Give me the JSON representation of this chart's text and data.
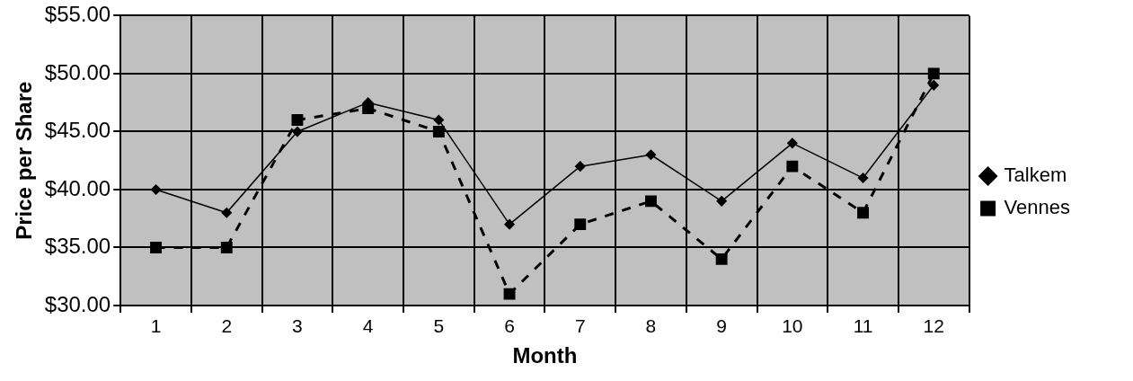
{
  "chart_data": {
    "type": "line",
    "xlabel": "Month",
    "ylabel": "Price per Share",
    "categories": [
      "1",
      "2",
      "3",
      "4",
      "5",
      "6",
      "7",
      "8",
      "9",
      "10",
      "11",
      "12"
    ],
    "series": [
      {
        "name": "Talkem",
        "color": "#000000",
        "marker": "diamond",
        "line_style": "solid",
        "values": [
          40,
          38,
          45,
          47.5,
          46,
          37,
          42,
          43,
          39,
          44,
          41,
          49
        ]
      },
      {
        "name": "Vennes",
        "color": "#000000",
        "marker": "square",
        "line_style": "dashed",
        "values": [
          35,
          35,
          46,
          47,
          45,
          31,
          37,
          39,
          34,
          42,
          38,
          50
        ]
      }
    ],
    "ylim": [
      30,
      55
    ],
    "yticks": [
      {
        "value": 30,
        "label": "$30.00"
      },
      {
        "value": 35,
        "label": "$35.00"
      },
      {
        "value": 40,
        "label": "$40.00"
      },
      {
        "value": 45,
        "label": "$45.00"
      },
      {
        "value": 50,
        "label": "$50.00"
      },
      {
        "value": 55,
        "label": "$55.00"
      }
    ],
    "grid": true,
    "legend": "right"
  }
}
